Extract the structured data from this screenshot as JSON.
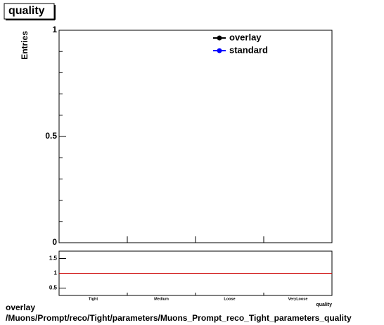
{
  "chart_data": [
    {
      "type": "hist",
      "title": "quality",
      "y_label": "Entries",
      "categories": [
        "Tight",
        "Medium",
        "Loose",
        "VeryLoose"
      ],
      "ylim": [
        0,
        1
      ],
      "yticks": [
        0,
        0.5,
        1
      ],
      "series": [
        {
          "name": "overlay",
          "color": "#000000"
        },
        {
          "name": "standard",
          "color": "#0000ff"
        }
      ],
      "legend": "upper right"
    },
    {
      "type": "ratio",
      "x_label": "quality",
      "categories": [
        "Tight",
        "Medium",
        "Loose",
        "VeryLoose"
      ],
      "ylim": [
        0.25,
        1.75
      ],
      "yticks": [
        0.5,
        1,
        1.5
      ],
      "reference": 1,
      "reference_color": "#cc0000"
    }
  ],
  "footer": [
    "overlay",
    "/Muons/Prompt/reco/Tight/parameters/Muons_Prompt_reco_Tight_parameters_quality"
  ]
}
